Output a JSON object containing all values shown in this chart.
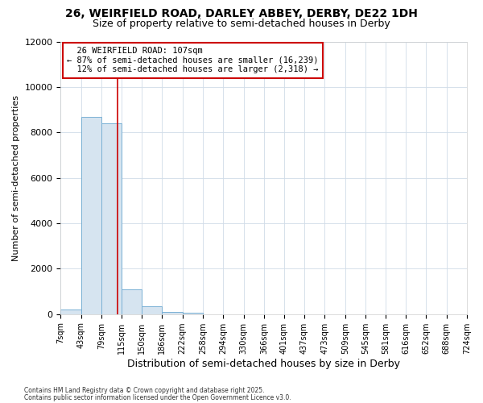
{
  "title1": "26, WEIRFIELD ROAD, DARLEY ABBEY, DERBY, DE22 1DH",
  "title2": "Size of property relative to semi-detached houses in Derby",
  "xlabel": "Distribution of semi-detached houses by size in Derby",
  "ylabel": "Number of semi-detached properties",
  "property_label": "26 WEIRFIELD ROAD: 107sqm",
  "smaller_pct": 87,
  "smaller_count": 16239,
  "larger_pct": 12,
  "larger_count": 2318,
  "bin_edges": [
    7,
    43,
    79,
    115,
    150,
    186,
    222,
    258,
    294,
    330,
    366,
    401,
    437,
    473,
    509,
    545,
    581,
    616,
    652,
    688,
    724
  ],
  "bin_labels": [
    "7sqm",
    "43sqm",
    "79sqm",
    "115sqm",
    "150sqm",
    "186sqm",
    "222sqm",
    "258sqm",
    "294sqm",
    "330sqm",
    "366sqm",
    "401sqm",
    "437sqm",
    "473sqm",
    "509sqm",
    "545sqm",
    "581sqm",
    "616sqm",
    "652sqm",
    "688sqm",
    "724sqm"
  ],
  "bar_heights": [
    200,
    8700,
    8400,
    1100,
    340,
    100,
    50,
    0,
    0,
    0,
    0,
    0,
    0,
    0,
    0,
    0,
    0,
    0,
    0,
    0
  ],
  "bar_color": "#d6e4f0",
  "bar_edge_color": "#7ab0d4",
  "vline_color": "#cc0000",
  "vline_x": 107,
  "annotation_box_color": "#cc0000",
  "ylim": [
    0,
    12000
  ],
  "yticks": [
    0,
    2000,
    4000,
    6000,
    8000,
    10000,
    12000
  ],
  "grid_color": "#d0dce8",
  "bg_color": "#ffffff",
  "footnote1": "Contains HM Land Registry data © Crown copyright and database right 2025.",
  "footnote2": "Contains public sector information licensed under the Open Government Licence v3.0."
}
